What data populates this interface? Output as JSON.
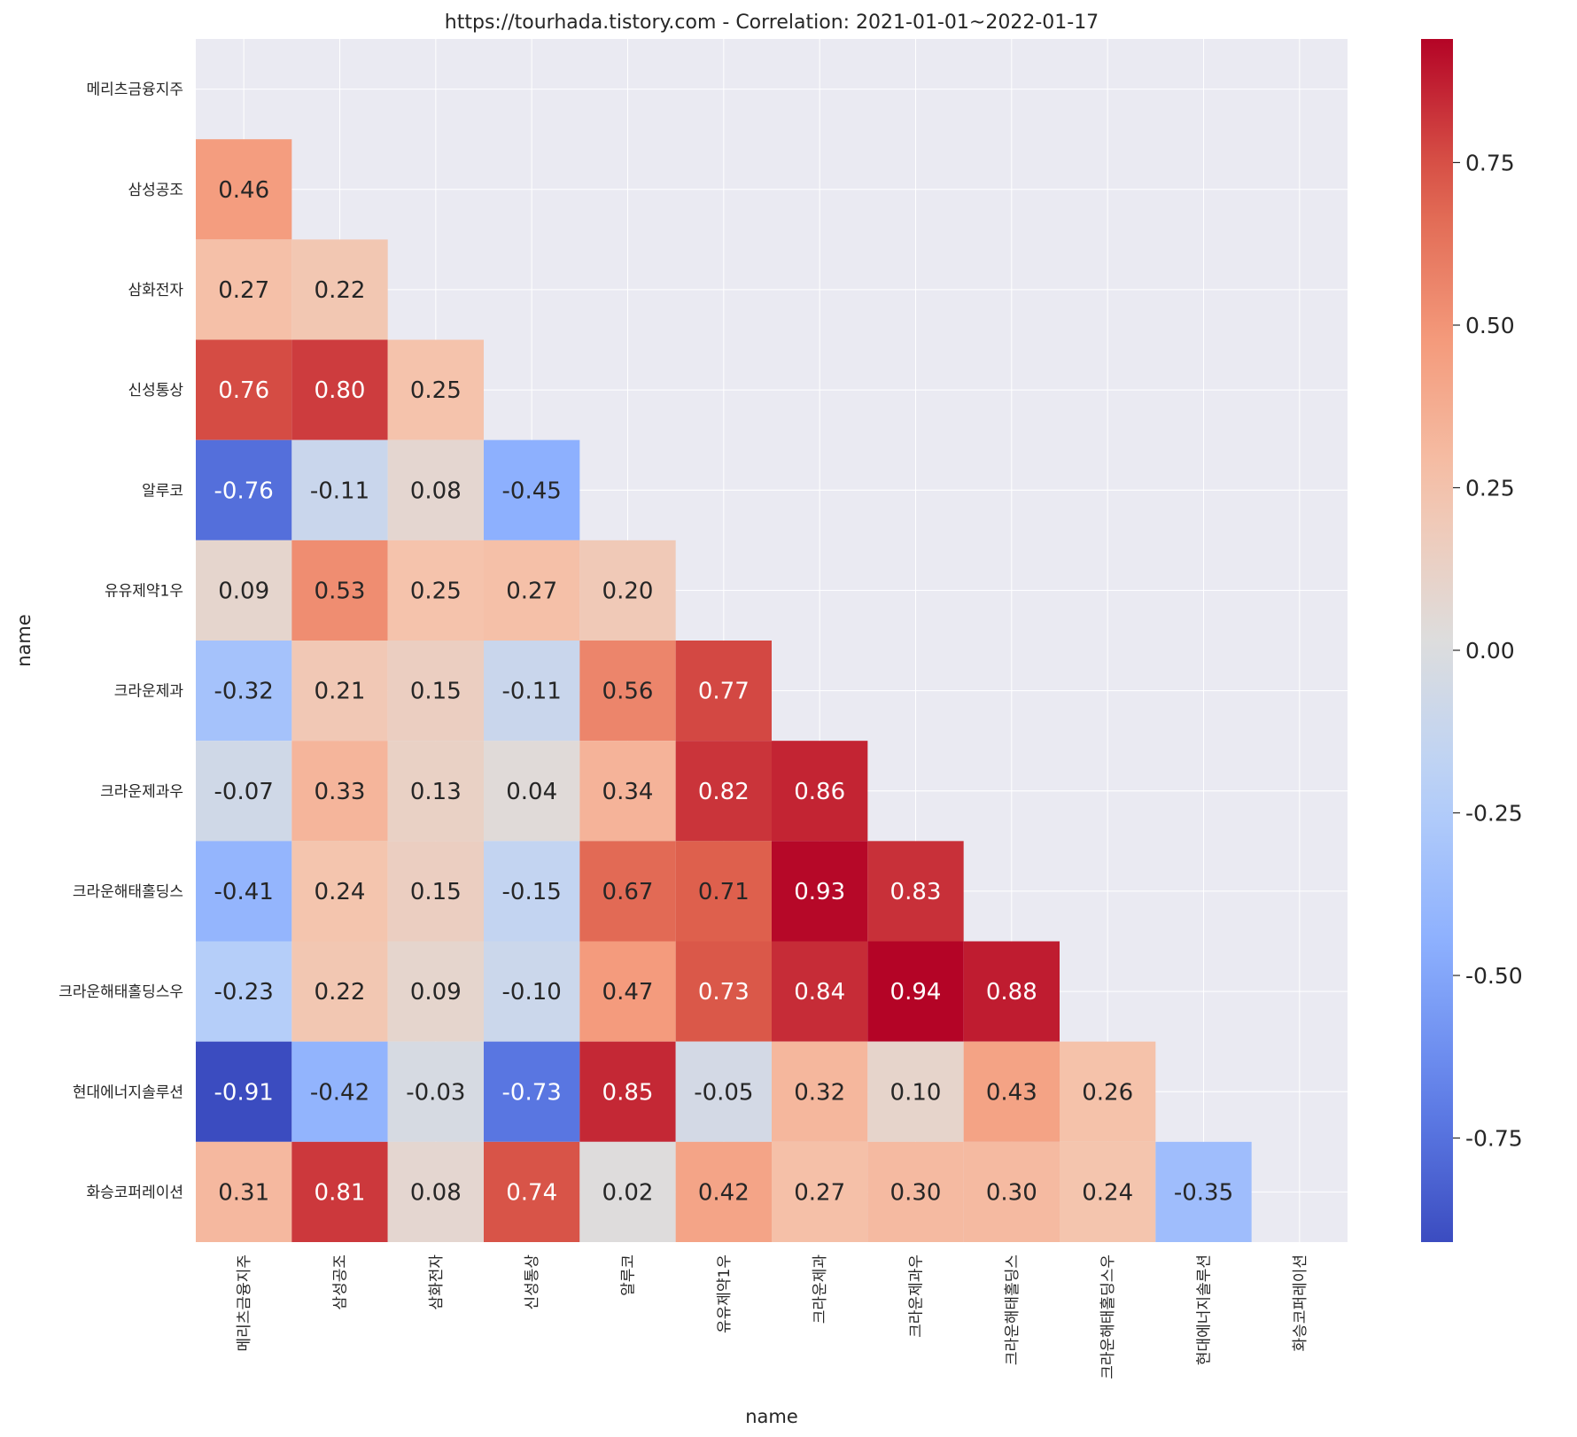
{
  "chart_data": {
    "type": "heatmap",
    "title": "https://tourhada.tistory.com - Correlation: 2021-01-01~2022-01-17",
    "xlabel": "name",
    "ylabel": "name",
    "labels": [
      "메리츠금융지주",
      "삼성공조",
      "삼화전자",
      "신성통상",
      "알루코",
      "유유제약1우",
      "크라운제과",
      "크라운제과우",
      "크라운해태홀딩스",
      "크라운해태홀딩스우",
      "현대에너지솔루션",
      "화승코퍼레이션"
    ],
    "mask": "upper-triangle-including-diagonal",
    "values": [
      [],
      [
        "0.46"
      ],
      [
        "0.27",
        "0.22"
      ],
      [
        "0.76",
        "0.80",
        "0.25"
      ],
      [
        "-0.76",
        "-0.11",
        "0.08",
        "-0.45"
      ],
      [
        "0.09",
        "0.53",
        "0.25",
        "0.27",
        "0.20"
      ],
      [
        "-0.32",
        "0.21",
        "0.15",
        "-0.11",
        "0.56",
        "0.77"
      ],
      [
        "-0.07",
        "0.33",
        "0.13",
        "0.04",
        "0.34",
        "0.82",
        "0.86"
      ],
      [
        "-0.41",
        "0.24",
        "0.15",
        "-0.15",
        "0.67",
        "0.71",
        "0.93",
        "0.83"
      ],
      [
        "-0.23",
        "0.22",
        "0.09",
        "-0.10",
        "0.47",
        "0.73",
        "0.84",
        "0.94",
        "0.88"
      ],
      [
        "-0.91",
        "-0.42",
        "-0.03",
        "-0.73",
        "0.85",
        "-0.05",
        "0.32",
        "0.10",
        "0.43",
        "0.26"
      ],
      [
        "0.31",
        "0.81",
        "0.08",
        "0.74",
        "0.02",
        "0.42",
        "0.27",
        "0.30",
        "0.30",
        "0.24",
        "-0.35"
      ]
    ],
    "colormap": "coolwarm",
    "vmin": -0.91,
    "vmax": 0.94,
    "colorbar_ticks": [
      "-0.75",
      "-0.50",
      "-0.25",
      "0.00",
      "0.25",
      "0.50",
      "0.75"
    ],
    "background_color": "#eaeaf2",
    "grid": true
  }
}
